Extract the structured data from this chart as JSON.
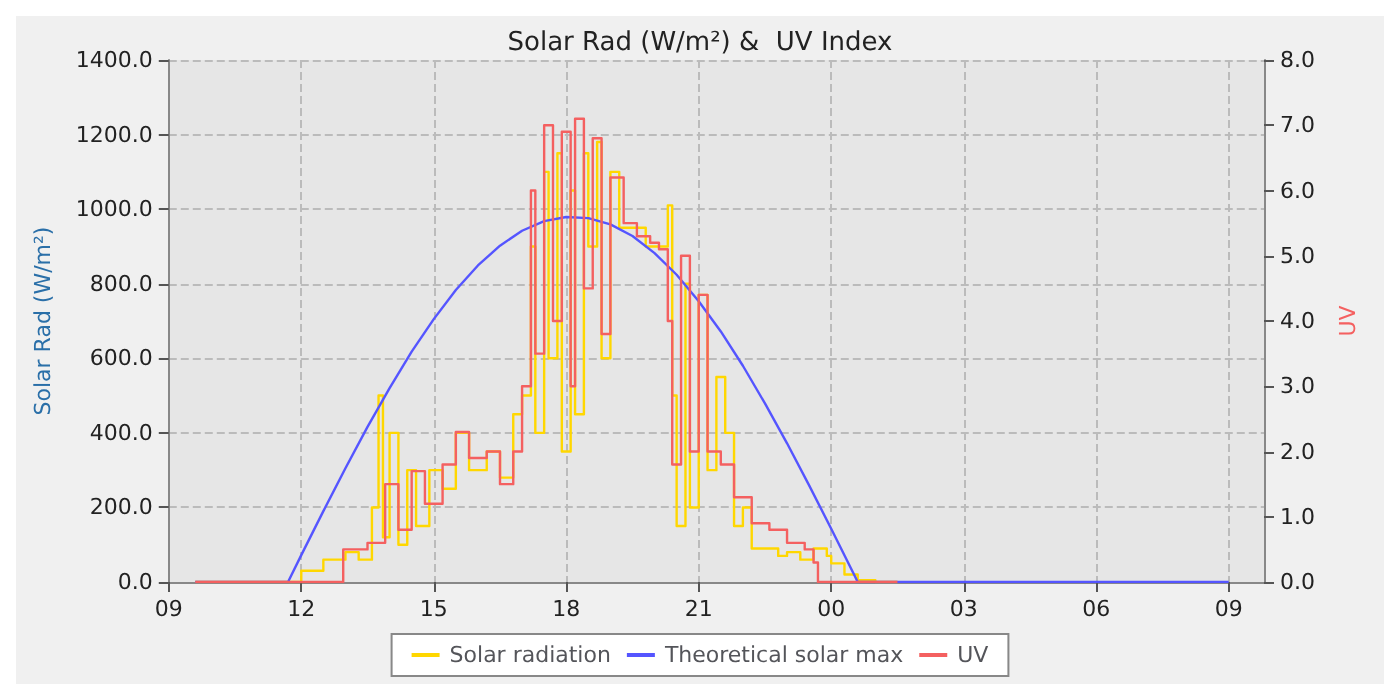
{
  "chart_data": {
    "type": "line",
    "title": "Solar Rad (W/m²) &  UV Index",
    "ylabel": "Solar Rad (W/m²)",
    "y2label": "UV",
    "xlim": [
      9,
      33.8
    ],
    "xticks": [
      {
        "value": 9,
        "label": "09"
      },
      12,
      15,
      18,
      21,
      {
        "value": 24,
        "label": "00"
      },
      {
        "value": 27,
        "label": "03"
      },
      {
        "value": 30,
        "label": "06"
      },
      {
        "value": 33,
        "label": "09"
      }
    ],
    "ylim": [
      0,
      1400
    ],
    "yticks": [
      {
        "value": 0,
        "label": "0.0"
      },
      {
        "value": 200,
        "label": "200.0"
      },
      {
        "value": 400,
        "label": "400.0"
      },
      {
        "value": 600,
        "label": "600.0"
      },
      {
        "value": 800,
        "label": "800.0"
      },
      {
        "value": 1000,
        "label": "1000.0"
      },
      {
        "value": 1200,
        "label": "1200.0"
      },
      {
        "value": 1400,
        "label": "1400.0"
      }
    ],
    "y2lim": [
      0,
      8
    ],
    "y2ticks": [
      {
        "value": 0,
        "label": "0.0"
      },
      {
        "value": 1,
        "label": "1.0"
      },
      {
        "value": 2,
        "label": "2.0"
      },
      {
        "value": 3,
        "label": "3.0"
      },
      {
        "value": 4,
        "label": "4.0"
      },
      {
        "value": 5,
        "label": "5.0"
      },
      {
        "value": 6,
        "label": "6.0"
      },
      {
        "value": 7,
        "label": "7.0"
      },
      {
        "value": 8,
        "label": "8.0"
      }
    ],
    "grid": true,
    "legend": "bottom",
    "marker": "none",
    "series": [
      {
        "name": "Solar radiation",
        "type": "step",
        "color": "#ffd700",
        "x": [
          9.6,
          11.6,
          12.0,
          12.5,
          13.0,
          13.3,
          13.6,
          13.75,
          13.85,
          14.0,
          14.2,
          14.4,
          14.6,
          14.9,
          15.2,
          15.5,
          15.8,
          16.2,
          16.5,
          16.8,
          17.0,
          17.2,
          17.3,
          17.5,
          17.6,
          17.8,
          17.9,
          18.1,
          18.2,
          18.4,
          18.5,
          18.7,
          18.8,
          19.0,
          19.2,
          19.5,
          19.8,
          20.1,
          20.3,
          20.4,
          20.5,
          20.7,
          20.8,
          21.0,
          21.2,
          21.4,
          21.6,
          21.8,
          22.0,
          22.2,
          22.5,
          22.8,
          23.0,
          23.3,
          23.6,
          23.9,
          24.0,
          24.3,
          24.6,
          25.0,
          25.5
        ],
        "values": [
          0,
          0,
          30,
          60,
          80,
          60,
          200,
          500,
          120,
          400,
          100,
          300,
          150,
          300,
          250,
          400,
          300,
          350,
          280,
          450,
          500,
          900,
          400,
          1100,
          600,
          1150,
          350,
          1050,
          450,
          1150,
          900,
          1180,
          600,
          1100,
          950,
          950,
          900,
          900,
          1010,
          500,
          150,
          800,
          200,
          770,
          300,
          550,
          400,
          150,
          200,
          90,
          90,
          70,
          80,
          60,
          90,
          70,
          50,
          20,
          5,
          0,
          0
        ]
      },
      {
        "name": "Theoretical solar max",
        "color": "#5555ff",
        "x": [
          9.6,
          11.7,
          12,
          12.5,
          13,
          13.5,
          14,
          14.5,
          15,
          15.5,
          16,
          16.5,
          17,
          17.5,
          18,
          18.5,
          19,
          19.5,
          20,
          20.5,
          21,
          21.5,
          22,
          22.5,
          23,
          23.5,
          24,
          24.5,
          24.6,
          33
        ],
        "values": [
          0,
          0,
          72,
          190,
          305,
          416,
          520,
          618,
          705,
          783,
          849,
          902,
          942,
          968,
          979,
          976,
          959,
          928,
          882,
          824,
          753,
          672,
          580,
          479,
          372,
          259,
          143,
          24,
          0,
          0
        ]
      },
      {
        "name": "UV",
        "type": "step",
        "axis": "y2",
        "color": "#f46060",
        "x": [
          9.6,
          12.9,
          12.95,
          13.5,
          13.9,
          14.2,
          14.5,
          14.8,
          15.2,
          15.5,
          15.8,
          16.2,
          16.5,
          16.8,
          17.0,
          17.2,
          17.3,
          17.5,
          17.7,
          17.9,
          18.1,
          18.2,
          18.4,
          18.6,
          18.8,
          19.0,
          19.3,
          19.6,
          19.9,
          20.1,
          20.3,
          20.4,
          20.6,
          20.8,
          21.0,
          21.2,
          21.5,
          21.8,
          22.2,
          22.6,
          23.0,
          23.4,
          23.6,
          23.7,
          25.5
        ],
        "values": [
          0,
          0,
          0.5,
          0.6,
          1.5,
          0.8,
          1.7,
          1.2,
          1.8,
          2.3,
          1.9,
          2.0,
          1.5,
          2.0,
          3.0,
          6.0,
          3.5,
          7.0,
          4.0,
          6.9,
          3.0,
          7.1,
          4.5,
          6.8,
          3.8,
          6.2,
          5.5,
          5.3,
          5.2,
          5.1,
          4.0,
          1.8,
          5.0,
          2.0,
          4.4,
          2.0,
          1.8,
          1.3,
          0.9,
          0.8,
          0.6,
          0.5,
          0.3,
          0,
          0
        ]
      }
    ]
  }
}
